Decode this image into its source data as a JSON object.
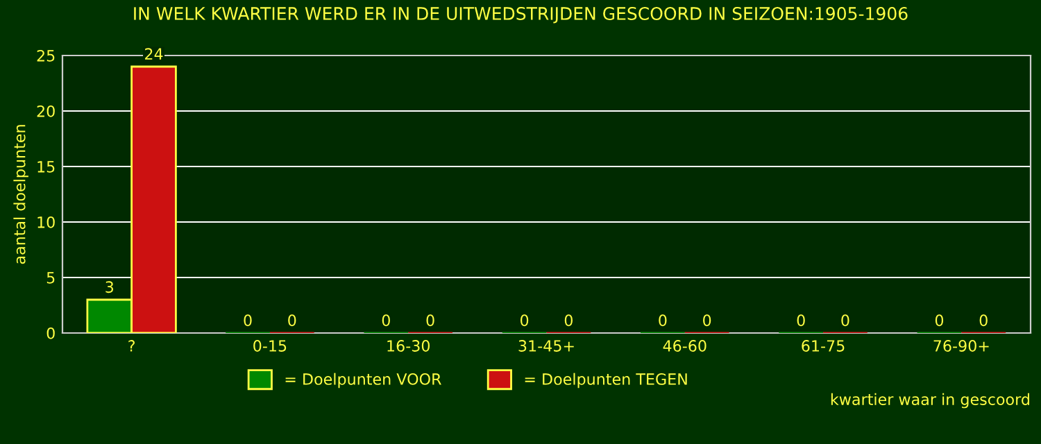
{
  "chart_data": {
    "type": "bar",
    "title": "IN WELK KWARTIER WERD ER IN DE UITWEDSTRIJDEN GESCOORD IN SEIZOEN:1905-1906",
    "xlabel": "kwartier waar in gescoord",
    "ylabel": "aantal doelpunten",
    "categories": [
      "?",
      "0-15",
      "16-30",
      "31-45+",
      "46-60",
      "61-75",
      "76-90+"
    ],
    "series": [
      {
        "name": "= Doelpunten VOOR",
        "color": "#008800",
        "values": [
          3,
          0,
          0,
          0,
          0,
          0,
          0
        ]
      },
      {
        "name": "= Doelpunten TEGEN",
        "color": "#cc1111",
        "values": [
          24,
          0,
          0,
          0,
          0,
          0,
          0
        ]
      }
    ],
    "ylim": [
      0,
      25
    ],
    "yticks": [
      0,
      5,
      10,
      15,
      20,
      25
    ],
    "grid": "y",
    "legend": "bottom",
    "data_labels": true
  }
}
